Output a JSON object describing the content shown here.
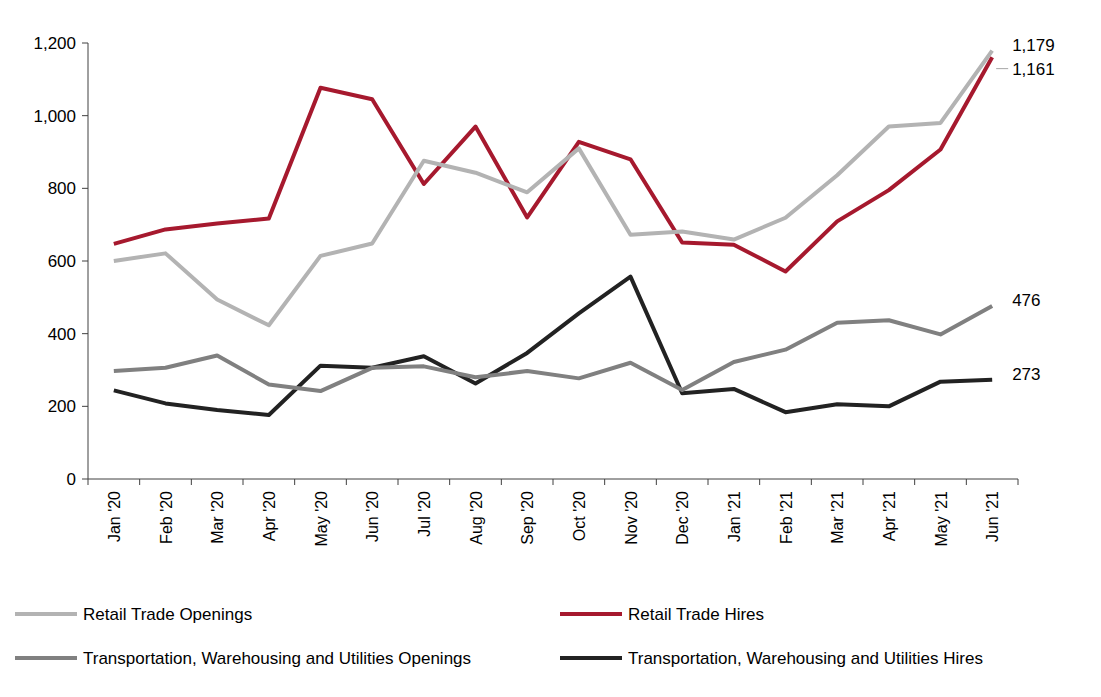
{
  "chart_data": {
    "type": "line",
    "categories": [
      "Jan '20",
      "Feb '20",
      "Mar '20",
      "Apr '20",
      "May '20",
      "Jun '20",
      "Jul '20",
      "Aug '20",
      "Sep '20",
      "Oct '20",
      "Nov '20",
      "Dec '20",
      "Jan '21",
      "Feb '21",
      "Mar '21",
      "Apr '21",
      "May '21",
      "Jun '21"
    ],
    "series": [
      {
        "name": "Retail Trade Openings",
        "color": "#b3b3b3",
        "values": [
          600,
          621,
          494,
          423,
          614,
          648,
          876,
          843,
          789,
          910,
          672,
          681,
          659,
          719,
          836,
          970,
          980,
          1179
        ],
        "value_labels": [
          null,
          null,
          null,
          null,
          null,
          null,
          null,
          null,
          null,
          null,
          null,
          null,
          null,
          null,
          null,
          null,
          null,
          "1,179"
        ]
      },
      {
        "name": "Retail Trade Hires",
        "color": "#a6192e",
        "values": [
          647,
          687,
          703,
          717,
          1077,
          1045,
          812,
          970,
          720,
          928,
          880,
          651,
          645,
          571,
          709,
          795,
          907,
          1161
        ],
        "value_labels": [
          null,
          null,
          null,
          null,
          null,
          null,
          null,
          null,
          null,
          null,
          null,
          null,
          null,
          null,
          null,
          null,
          null,
          "1,161"
        ]
      },
      {
        "name": "Transportation, Warehousing and Utilities Openings",
        "color": "#808080",
        "values": [
          297,
          306,
          340,
          260,
          242,
          306,
          310,
          280,
          297,
          277,
          320,
          245,
          322,
          356,
          430,
          437,
          398,
          476
        ],
        "value_labels": [
          null,
          null,
          null,
          null,
          null,
          null,
          null,
          null,
          null,
          null,
          null,
          null,
          null,
          null,
          null,
          null,
          null,
          "476"
        ]
      },
      {
        "name": "Transportation, Warehousing and Utilities Hires",
        "color": "#222222",
        "values": [
          244,
          208,
          190,
          176,
          312,
          306,
          338,
          263,
          347,
          456,
          557,
          236,
          248,
          184,
          206,
          200,
          268,
          273
        ],
        "value_labels": [
          null,
          null,
          null,
          null,
          null,
          null,
          null,
          null,
          null,
          null,
          null,
          null,
          null,
          null,
          null,
          null,
          null,
          "273"
        ]
      }
    ],
    "ylim": [
      0,
      1200
    ],
    "yticks": [
      0,
      200,
      400,
      600,
      800,
      {
        "value": 1000,
        "label": "1,000"
      },
      {
        "value": 1200,
        "label": "1,200"
      }
    ],
    "grid": false,
    "legend": "bottom",
    "data_labels": true
  }
}
